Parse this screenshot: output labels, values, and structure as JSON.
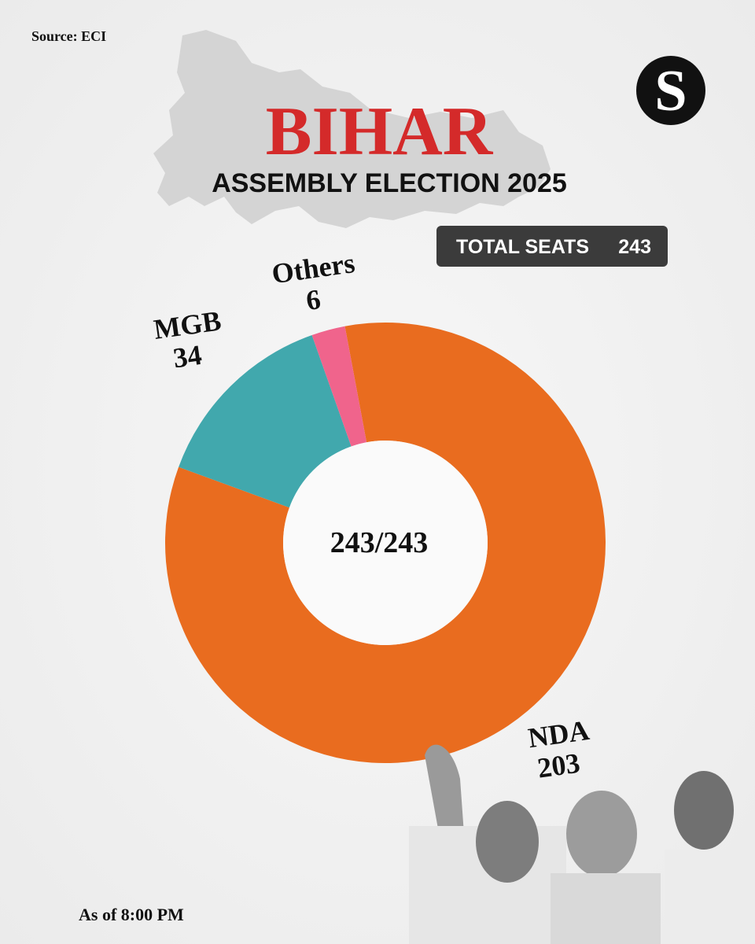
{
  "chart_data": {
    "type": "donut",
    "source": "Source: ECI",
    "title": "BIHAR",
    "subtitle": "ASSEMBLY ELECTION 2025",
    "total_seats_label": "TOTAL SEATS",
    "total_seats": 243,
    "center_label": "243/243",
    "footnote": "As of 8:00 PM",
    "categories": [
      "NDA",
      "MGB",
      "Others"
    ],
    "values": [
      203,
      34,
      6
    ],
    "colors": [
      "#e96c1f",
      "#41a8ad",
      "#f0648c"
    ]
  }
}
